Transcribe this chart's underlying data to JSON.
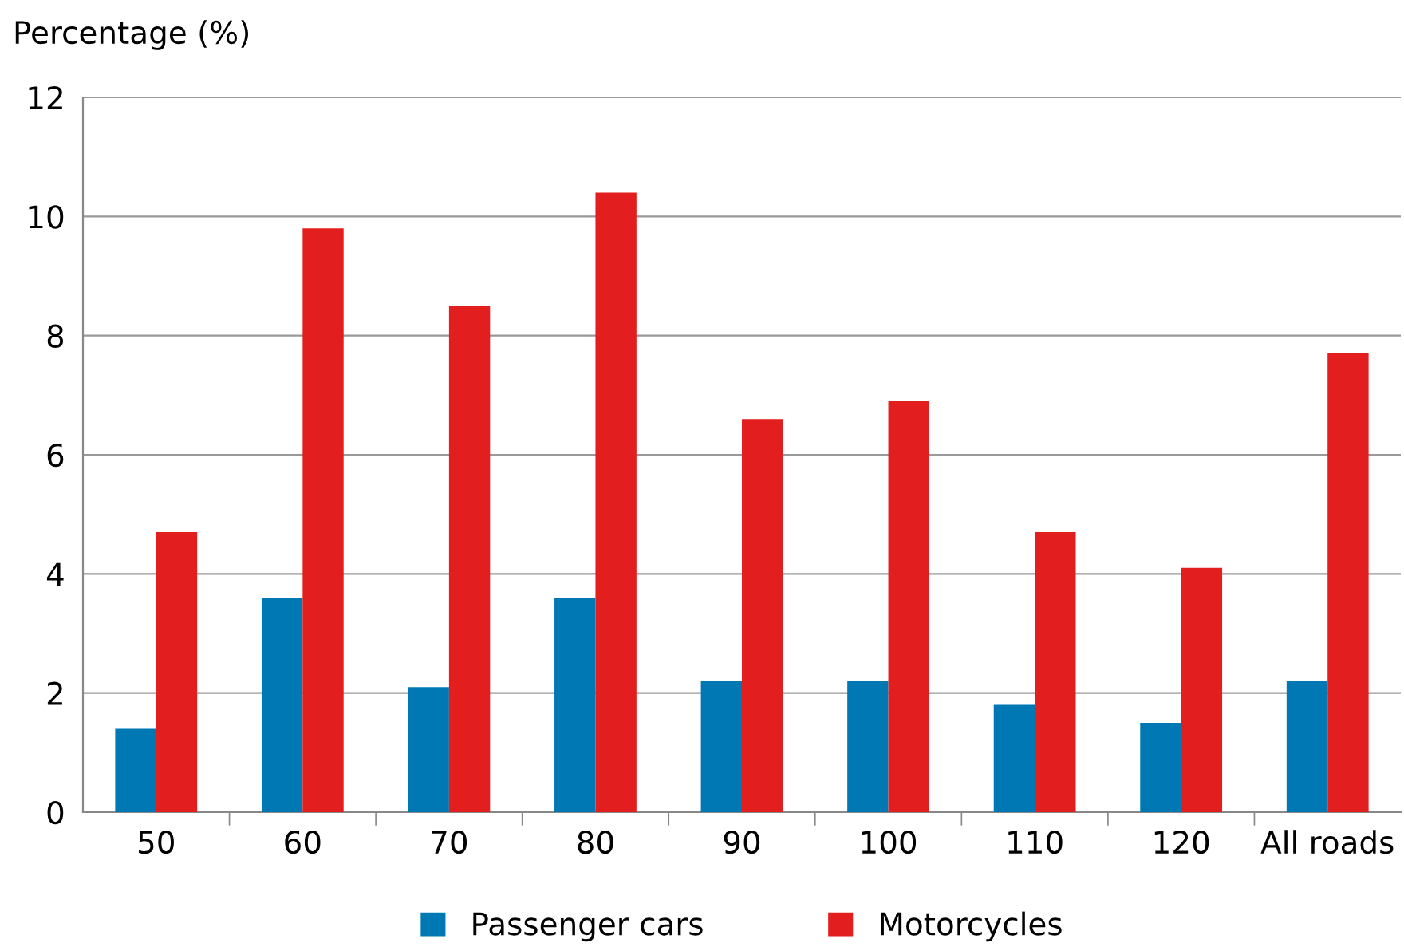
{
  "chart_data": {
    "type": "bar",
    "ylabel": "Percentage (%)",
    "categories": [
      "50",
      "60",
      "70",
      "80",
      "90",
      "100",
      "110",
      "120",
      "All roads"
    ],
    "series": [
      {
        "name": "Passenger cars",
        "color": "#0078b4",
        "values": [
          1.4,
          3.6,
          2.1,
          3.6,
          2.2,
          2.2,
          1.8,
          1.5,
          2.2
        ]
      },
      {
        "name": "Motorcycles",
        "color": "#e31e1e",
        "values": [
          4.7,
          9.8,
          8.5,
          10.4,
          6.6,
          6.9,
          4.7,
          4.1,
          7.7
        ]
      }
    ],
    "ylim": [
      0,
      12
    ],
    "yticks": [
      0,
      2,
      4,
      6,
      8,
      10,
      12
    ],
    "grid": "y",
    "legend": "bottom"
  }
}
